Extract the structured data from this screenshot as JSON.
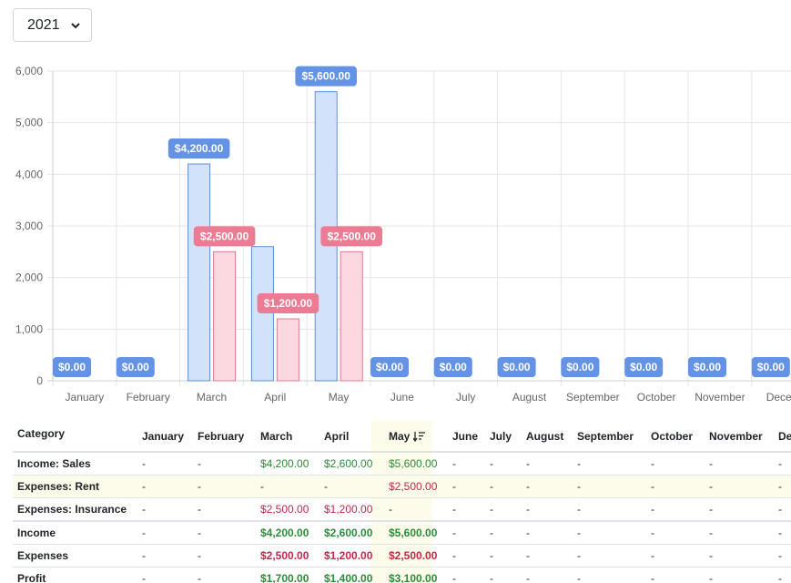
{
  "year_select": {
    "value": "2021",
    "icon": "chevron-down-icon"
  },
  "colors": {
    "income_fill": "#d3e2fb",
    "income_stroke": "#5e8fd9",
    "income_label": "#6493e6",
    "expense_fill": "#fcd9e0",
    "expense_stroke": "#e07a90",
    "expense_label": "#ec7b94"
  },
  "chart_data": {
    "type": "bar",
    "categories": [
      "January",
      "February",
      "March",
      "April",
      "May",
      "June",
      "July",
      "August",
      "September",
      "October",
      "November",
      "December"
    ],
    "series": [
      {
        "values": [
          0,
          0,
          4200,
          2600,
          5600,
          0,
          0,
          0,
          0,
          0,
          0,
          0
        ]
      },
      {
        "values": [
          0,
          0,
          2500,
          1200,
          2500,
          0,
          0,
          0,
          0,
          0,
          0,
          0
        ]
      }
    ],
    "data_labels": {
      "income": [
        "$0.00",
        "$0.00",
        "$4,200.00",
        "",
        "$5,600.00",
        "$0.00",
        "$0.00",
        "$0.00",
        "$0.00",
        "$0.00",
        "$0.00",
        "$0.00"
      ],
      "expenses": [
        "",
        "",
        "$2,500.00",
        "$1,200.00",
        "$2,500.00",
        "",
        "",
        "",
        "",
        "",
        "",
        ""
      ]
    },
    "ylim": [
      0,
      6000
    ],
    "yticks": [
      "0",
      "1,000",
      "2,000",
      "3,000",
      "4,000",
      "5,000",
      "6,000"
    ],
    "xtick_labels": [
      "January",
      "February",
      "March",
      "April",
      "May",
      "June",
      "July",
      "August",
      "September",
      "October",
      "November",
      "Decem"
    ],
    "grid": true
  },
  "table": {
    "headers": [
      "Category",
      "January",
      "February",
      "March",
      "April",
      "May",
      "June",
      "July",
      "August",
      "September",
      "October",
      "November",
      "De"
    ],
    "sort_icon": "sort-descending-icon",
    "rows": [
      {
        "category": "Income: Sales",
        "cells": [
          "-",
          "-",
          "$4,200.00",
          "$2,600.00",
          "$5,600.00",
          "-",
          "-",
          "-",
          "-",
          "-",
          "-",
          "-"
        ]
      },
      {
        "category": "Expenses: Rent",
        "cells": [
          "-",
          "-",
          "-",
          "-",
          "$2,500.00",
          "-",
          "-",
          "-",
          "-",
          "-",
          "-",
          "-"
        ]
      },
      {
        "category": "Expenses: Insurance",
        "cells": [
          "-",
          "-",
          "$2,500.00",
          "$1,200.00",
          "-",
          "-",
          "-",
          "-",
          "-",
          "-",
          "-",
          "-"
        ]
      },
      {
        "category": "Income",
        "cells": [
          "-",
          "-",
          "$4,200.00",
          "$2,600.00",
          "$5,600.00",
          "-",
          "-",
          "-",
          "-",
          "-",
          "-",
          "-"
        ]
      },
      {
        "category": "Expenses",
        "cells": [
          "-",
          "-",
          "$2,500.00",
          "$1,200.00",
          "$2,500.00",
          "-",
          "-",
          "-",
          "-",
          "-",
          "-",
          "-"
        ]
      },
      {
        "category": "Profit",
        "cells": [
          "-",
          "-",
          "$1,700.00",
          "$1,400.00",
          "$3,100.00",
          "-",
          "-",
          "-",
          "-",
          "-",
          "-",
          "-"
        ]
      }
    ]
  }
}
